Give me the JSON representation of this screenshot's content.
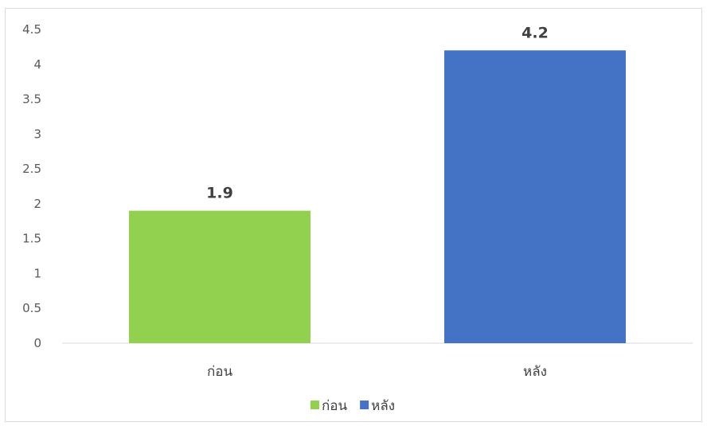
{
  "chart_data": {
    "type": "bar",
    "categories": [
      "ก่อน",
      "หลัง"
    ],
    "values": [
      1.9,
      4.2
    ],
    "data_labels": [
      "1.9",
      "4.2"
    ],
    "colors": [
      "#92d050",
      "#4472c4"
    ],
    "ylim": [
      0,
      4.5
    ],
    "yticks": [
      "0",
      "0.5",
      "1",
      "1.5",
      "2",
      "2.5",
      "3",
      "3.5",
      "4",
      "4.5"
    ],
    "grid": false,
    "legend": {
      "position": "bottom",
      "entries": [
        {
          "label": "ก่อน",
          "color": "#92d050"
        },
        {
          "label": "หลัง",
          "color": "#4472c4"
        }
      ]
    }
  }
}
